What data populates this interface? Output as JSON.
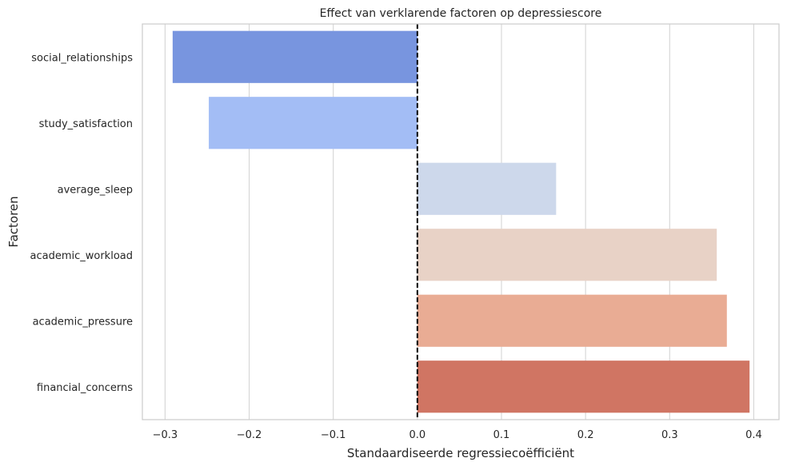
{
  "chart_data": {
    "type": "bar",
    "orientation": "horizontal",
    "title": "Effect van verklarende factoren op depressiescore",
    "xlabel": "Standaardiseerde regressiecoëfficiënt",
    "ylabel": "Factoren",
    "categories": [
      "social_relationships",
      "study_satisfaction",
      "average_sleep",
      "academic_workload",
      "academic_pressure",
      "financial_concerns"
    ],
    "values": [
      -0.291,
      -0.248,
      0.165,
      0.356,
      0.368,
      0.395
    ],
    "colors": [
      "#7895df",
      "#a3bdf5",
      "#cdd8eb",
      "#e8d2c6",
      "#e9ac94",
      "#d07563"
    ],
    "xlim": [
      -0.327,
      0.43
    ],
    "xticks": [
      -0.3,
      -0.2,
      -0.1,
      0.0,
      0.1,
      0.2,
      0.3,
      0.4
    ],
    "xtick_labels": [
      "−0.3",
      "−0.2",
      "−0.1",
      "0.0",
      "0.1",
      "0.2",
      "0.3",
      "0.4"
    ],
    "grid": "vertical",
    "reference_line": 0
  }
}
